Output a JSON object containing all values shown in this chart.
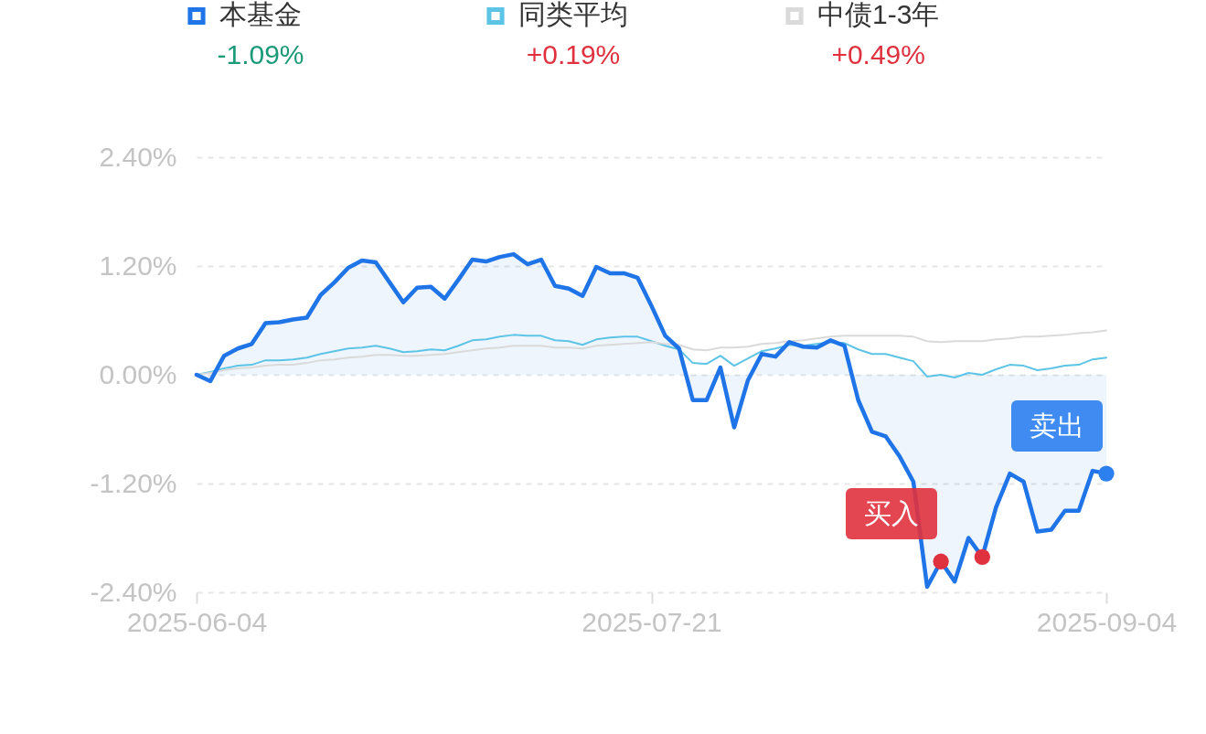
{
  "chart_data": {
    "type": "line",
    "categories": [
      "2025-06-04",
      null,
      null,
      null,
      null,
      null,
      null,
      null,
      null,
      null,
      null,
      null,
      null,
      null,
      null,
      null,
      null,
      null,
      null,
      null,
      null,
      null,
      null,
      null,
      null,
      null,
      null,
      null,
      null,
      null,
      null,
      null,
      null,
      "2025-07-21",
      null,
      null,
      null,
      null,
      null,
      null,
      null,
      null,
      null,
      null,
      null,
      null,
      null,
      null,
      null,
      null,
      null,
      null,
      null,
      null,
      null,
      null,
      null,
      null,
      null,
      null,
      null,
      null,
      null,
      null,
      null,
      null,
      "2025-09-04"
    ],
    "series": [
      {
        "name": "本基金",
        "type": "area",
        "color": "#1f74e8",
        "values": [
          0.0,
          -0.07,
          0.21,
          0.29,
          0.34,
          0.57,
          0.58,
          0.61,
          0.63,
          0.88,
          1.02,
          1.18,
          1.26,
          1.24,
          1.02,
          0.8,
          0.96,
          0.97,
          0.84,
          1.05,
          1.27,
          1.25,
          1.3,
          1.33,
          1.22,
          1.27,
          0.98,
          0.95,
          0.87,
          1.19,
          1.12,
          1.12,
          1.07,
          0.76,
          0.43,
          0.29,
          -0.28,
          -0.28,
          0.08,
          -0.58,
          -0.06,
          0.23,
          0.2,
          0.36,
          0.31,
          0.3,
          0.38,
          0.32,
          -0.28,
          -0.63,
          -0.68,
          -0.9,
          -1.18,
          -2.34,
          -2.06,
          -2.28,
          -1.8,
          -2.01,
          -1.46,
          -1.09,
          -1.18,
          -1.73,
          -1.71,
          -1.5,
          -1.5,
          -1.06,
          -1.09
        ]
      },
      {
        "name": "同类平均",
        "type": "line",
        "color": "#5ec4e6",
        "values": [
          0.0,
          0.03,
          0.07,
          0.1,
          0.11,
          0.16,
          0.16,
          0.17,
          0.19,
          0.23,
          0.26,
          0.29,
          0.3,
          0.32,
          0.29,
          0.25,
          0.26,
          0.28,
          0.27,
          0.32,
          0.38,
          0.39,
          0.42,
          0.44,
          0.43,
          0.43,
          0.38,
          0.37,
          0.33,
          0.39,
          0.41,
          0.42,
          0.42,
          0.37,
          0.32,
          0.28,
          0.13,
          0.12,
          0.21,
          0.1,
          0.18,
          0.26,
          0.29,
          0.33,
          0.32,
          0.34,
          0.36,
          0.35,
          0.28,
          0.23,
          0.23,
          0.19,
          0.15,
          -0.02,
          0.0,
          -0.03,
          0.02,
          0.0,
          0.06,
          0.11,
          0.1,
          0.05,
          0.07,
          0.1,
          0.11,
          0.17,
          0.19
        ]
      },
      {
        "name": "中债1-3年",
        "type": "line",
        "color": "#dadada",
        "values": [
          0.0,
          0.02,
          0.05,
          0.07,
          0.08,
          0.1,
          0.11,
          0.11,
          0.13,
          0.16,
          0.17,
          0.19,
          0.2,
          0.22,
          0.22,
          0.21,
          0.21,
          0.22,
          0.23,
          0.25,
          0.27,
          0.29,
          0.3,
          0.32,
          0.32,
          0.32,
          0.3,
          0.3,
          0.29,
          0.32,
          0.33,
          0.34,
          0.35,
          0.36,
          0.34,
          0.33,
          0.28,
          0.27,
          0.3,
          0.3,
          0.31,
          0.34,
          0.35,
          0.37,
          0.38,
          0.4,
          0.42,
          0.43,
          0.43,
          0.43,
          0.43,
          0.43,
          0.42,
          0.37,
          0.36,
          0.37,
          0.37,
          0.37,
          0.39,
          0.4,
          0.42,
          0.42,
          0.43,
          0.44,
          0.46,
          0.47,
          0.49
        ]
      },
      {
        "type": "scatter",
        "color": "#e0323e",
        "values": [
          null,
          null,
          null,
          null,
          null,
          null,
          null,
          null,
          null,
          null,
          null,
          null,
          null,
          null,
          null,
          null,
          null,
          null,
          null,
          null,
          null,
          null,
          null,
          null,
          null,
          null,
          null,
          null,
          null,
          null,
          null,
          null,
          null,
          null,
          null,
          null,
          null,
          null,
          null,
          null,
          null,
          null,
          null,
          null,
          null,
          null,
          null,
          null,
          null,
          null,
          null,
          null,
          null,
          null,
          -2.06,
          null,
          null,
          -2.01,
          null,
          null,
          null,
          null,
          null,
          null,
          null,
          null,
          null
        ]
      },
      {
        "type": "scatter",
        "color": "#2c80f0",
        "values": [
          null,
          null,
          null,
          null,
          null,
          null,
          null,
          null,
          null,
          null,
          null,
          null,
          null,
          null,
          null,
          null,
          null,
          null,
          null,
          null,
          null,
          null,
          null,
          null,
          null,
          null,
          null,
          null,
          null,
          null,
          null,
          null,
          null,
          null,
          null,
          null,
          null,
          null,
          null,
          null,
          null,
          null,
          null,
          null,
          null,
          null,
          null,
          null,
          null,
          null,
          null,
          null,
          null,
          null,
          null,
          null,
          null,
          null,
          null,
          null,
          null,
          null,
          null,
          null,
          null,
          null,
          -1.09
        ]
      }
    ],
    "ylim": [
      -2.4,
      2.4
    ],
    "yticks": [
      {
        "value": 2.4,
        "label": "2.40%"
      },
      {
        "value": 1.2,
        "label": "1.20%"
      },
      {
        "value": 0,
        "label": "0.00%"
      },
      {
        "value": -1.2,
        "label": "-1.20%"
      },
      {
        "value": -2.4,
        "label": "-2.40%"
      }
    ],
    "grid": "y",
    "legend": "top",
    "annotations": [
      "-1.09%",
      "+0.19%",
      "+0.49%",
      "买入",
      "卖出"
    ]
  }
}
